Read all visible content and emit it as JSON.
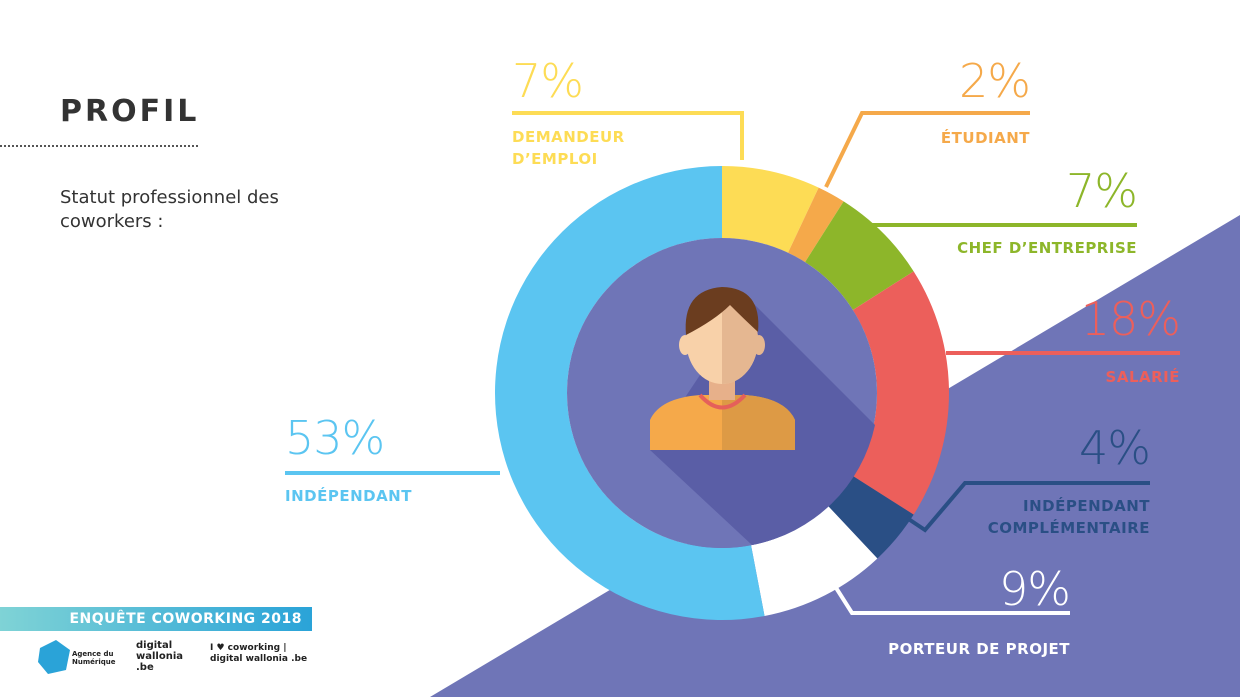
{
  "chart_data": {
    "type": "pie",
    "donut": true,
    "title": "PROFIL",
    "subtitle": "Statut professionnel des coworkers :",
    "categories": [
      "DEMANDEUR D’EMPLOI",
      "ÉTUDIANT",
      "CHEF D’ENTREPRISE",
      "SALARIÉ",
      "INDÉPENDANT COMPLÉMENTAIRE",
      "PORTEUR DE PROJET",
      "INDÉPENDANT"
    ],
    "values": [
      7,
      2,
      7,
      18,
      4,
      9,
      53
    ],
    "value_labels": [
      "7%",
      "2%",
      "7%",
      "18%",
      "4%",
      "9%",
      "53%"
    ],
    "colors": [
      "#fddc55",
      "#f5a94a",
      "#8db62a",
      "#ec5f5b",
      "#2a4f85",
      "#ffffff",
      "#5bc5f1"
    ]
  },
  "footer": {
    "banner": "ENQUÊTE COWORKING 2018",
    "logos": [
      "Agence du Numérique",
      "digital wallonia .be",
      "I ♥ coworking | digital wallonia .be"
    ]
  }
}
